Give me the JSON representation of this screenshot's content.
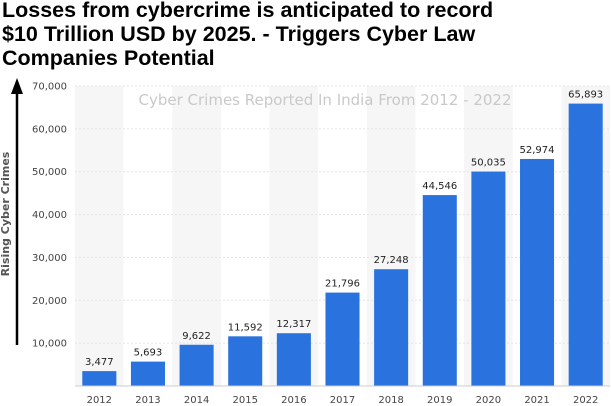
{
  "headline": {
    "lines": [
      "Losses from cybercrime is anticipated to record",
      "$10 Trillion USD by 2025. - Triggers Cyber Law",
      "Companies Potential"
    ]
  },
  "chart_data": {
    "type": "bar",
    "title": "Cyber Crimes Reported In India From 2012 - 2022",
    "ylabel": "Rising Cyber Crimes",
    "xlabel": "",
    "categories": [
      "2012",
      "2013",
      "2014",
      "2015",
      "2016",
      "2017",
      "2018",
      "2019",
      "2020",
      "2021",
      "2022"
    ],
    "values": [
      3477,
      5693,
      9622,
      11592,
      12317,
      21796,
      27248,
      44546,
      50035,
      52974,
      65893
    ],
    "data_labels": [
      "3,477",
      "5,693",
      "9,622",
      "11,592",
      "12,317",
      "21,796",
      "27,248",
      "44,546",
      "50,035",
      "52,974",
      "65,893"
    ],
    "yticks": [
      10000,
      20000,
      30000,
      40000,
      50000,
      60000,
      70000
    ],
    "ytick_labels": [
      "10,000",
      "20,000",
      "30,000",
      "40,000",
      "50,000",
      "60,000",
      "70,000"
    ],
    "ylim": [
      0,
      70000
    ],
    "grid": true,
    "bar_color": "#2a72de"
  }
}
